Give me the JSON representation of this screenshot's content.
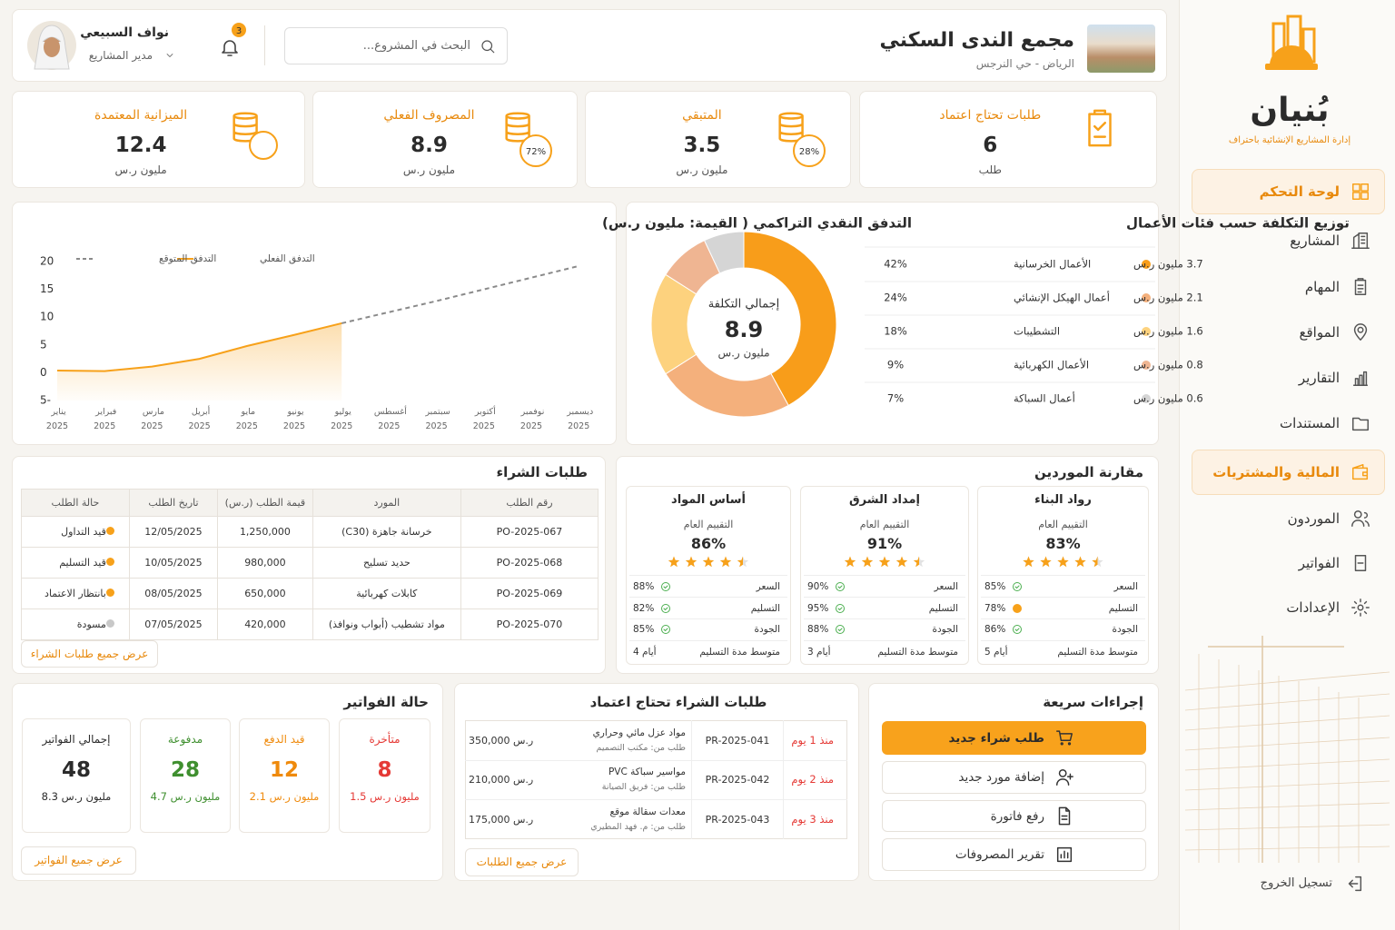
{
  "sidebar": {
    "brand": "بُنيان",
    "tagline": "إدارة المشاريع الإنشائية باحتراف",
    "nav": [
      "لوحة التحكم",
      "المشاريع",
      "المهام",
      "المواقع",
      "التقارير",
      "المستندات",
      "المالية والمشتريات",
      "الموردون",
      "الفواتير",
      "الإعدادات"
    ],
    "active": [
      0,
      6
    ],
    "logout": "تسجيل الخروج"
  },
  "header": {
    "project_name": "مجمع الندى السكني",
    "location": "الرياض - حي النرجس",
    "search_placeholder": "البحث في المشروع...",
    "notifications": 3,
    "user_name": "نواف السبيعي",
    "user_role": "مدير المشاريع"
  },
  "kpis": [
    {
      "title": "طلبات تحتاج اعتماد",
      "value": 6,
      "unit": "طلب"
    },
    {
      "title": "المتبقي",
      "value": 3.5,
      "unit": "مليون ر.س",
      "percent": "28%"
    },
    {
      "title": "المصروف الفعلي",
      "value": 8.9,
      "unit": "مليون ر.س",
      "percent": "72%"
    },
    {
      "title": "الميزانية المعتمدة",
      "value": 12.4,
      "unit": "مليون ر.س"
    }
  ],
  "chart_data": [
    {
      "type": "line",
      "title": "التدفق النقدي التراكمي ( القيمة: مليون ر.س)",
      "categories": [
        "يناير 2025",
        "فبراير 2025",
        "مارس 2025",
        "أبريل 2025",
        "مايو 2025",
        "يونيو 2025",
        "يوليو 2025",
        "أغسطس 2025",
        "سبتمبر 2025",
        "أكتوبر 2025",
        "نوفمبر 2025",
        "ديسمبر 2025"
      ],
      "series": [
        {
          "name": "التدفق الفعلي",
          "color": "#f7a11a",
          "area": true,
          "values": [
            0.4,
            0.3,
            1.1,
            2.5,
            4.8,
            6.8,
            8.9,
            null,
            null,
            null,
            null,
            null
          ]
        },
        {
          "name": "التدفق المتوقع",
          "color": "#8a8a8a",
          "dashed": true,
          "values": [
            null,
            null,
            null,
            null,
            null,
            null,
            8.9,
            10.9,
            12.9,
            15,
            17.1,
            19.2
          ]
        }
      ],
      "ylim": [
        -5,
        20
      ],
      "yticks": [
        -5,
        0,
        5,
        10,
        15,
        20
      ],
      "grid": false
    },
    {
      "type": "donut",
      "title": "توزيع التكلفة حسب فئات الأعمال",
      "center_title": "إجمالي التكلفة",
      "center_value": 8.9,
      "center_unit": "مليون ر.س",
      "categories": [
        "الأعمال الخرسانية",
        "أعمال الهيكل الإنشائي",
        "التشطيبات",
        "الأعمال الكهربائية",
        "أعمال السباكة"
      ],
      "values": [
        42,
        24,
        18,
        9,
        7
      ],
      "value_labels": [
        "42%",
        "24%",
        "18%",
        "9%",
        "7%"
      ],
      "amount_labels": [
        "3.7 مليون ر.س",
        "2.1 مليون ر.س",
        "1.6 مليون ر.س",
        "0.8 مليون ر.س",
        "0.6 مليون ر.س"
      ],
      "colors": [
        "#f89d1a",
        "#f4b07c",
        "#fdd27e",
        "#efb592",
        "#d5d5d5"
      ]
    }
  ],
  "purchase_orders": {
    "title": "طلبات الشراء",
    "columns": [
      "رقم الطلب",
      "المورد",
      "قيمة الطلب (ر.س)",
      "تاريخ الطلب",
      "حالة الطلب"
    ],
    "rows": [
      [
        "PO-2025-067",
        "خرسانة جاهزة (C30)",
        "1,250,000",
        "12/05/2025",
        "قيد التداول"
      ],
      [
        "PO-2025-068",
        "حديد تسليح",
        "980,000",
        "10/05/2025",
        "قيد التسليم"
      ],
      [
        "PO-2025-069",
        "كابلات كهربائية",
        "650,000",
        "08/05/2025",
        "بانتظار الاعتماد"
      ],
      [
        "PO-2025-070",
        "مواد تشطيب (أبواب ونوافذ)",
        "420,000",
        "07/05/2025",
        "مسودة"
      ]
    ],
    "status_colors": [
      "#f7a11a",
      "#f7a11a",
      "#f7a11a",
      "#c8c8c8"
    ],
    "button": "عرض جميع طلبات الشراء"
  },
  "supplier_comparison": {
    "title": "مقارنة الموردين",
    "overall_label": "التقييم العام",
    "metric_labels": [
      "السعر",
      "التسليم",
      "الجودة"
    ],
    "delivery_label": "متوسط مدة التسليم",
    "suppliers": [
      {
        "name": "رواد البناء",
        "score": "83%",
        "rating": 4.5,
        "metrics": [
          "85%",
          "78%",
          "86%"
        ],
        "metric_status": [
          "ok",
          "warn",
          "ok"
        ],
        "delivery": "5 أيام"
      },
      {
        "name": "إمداد الشرق",
        "score": "91%",
        "rating": 4.5,
        "metrics": [
          "90%",
          "95%",
          "88%"
        ],
        "metric_status": [
          "ok",
          "ok",
          "ok"
        ],
        "delivery": "3 أيام"
      },
      {
        "name": "أساس المواد",
        "score": "86%",
        "rating": 4.5,
        "metrics": [
          "88%",
          "82%",
          "85%"
        ],
        "metric_status": [
          "ok",
          "ok",
          "ok"
        ],
        "delivery": "4 أيام"
      }
    ]
  },
  "invoices": {
    "title": "حالة الفواتير",
    "cards": [
      {
        "label": "متأخرة",
        "count": 8,
        "amount": "1.5 مليون ر.س",
        "color": "#e53935"
      },
      {
        "label": "قيد الدفع",
        "count": 12,
        "amount": "2.1 مليون ر.س",
        "color": "#ef8a0c"
      },
      {
        "label": "مدفوعة",
        "count": 28,
        "amount": "4.7 مليون ر.س",
        "color": "#3f8f2f"
      },
      {
        "label": "إجمالي الفواتير",
        "count": 48,
        "amount": "8.3 مليون ر.س",
        "color": "#2b2b2b"
      }
    ],
    "button": "عرض جميع الفواتير"
  },
  "approvals": {
    "title": "طلبات الشراء تحتاج اعتماد",
    "rows": [
      {
        "age": "منذ 1 يوم",
        "id": "PR-2025-041",
        "item": "مواد عزل مائي وحراري",
        "requester": "طلب من: مكتب التصميم",
        "amount": "350,000 ر.س"
      },
      {
        "age": "منذ 2 يوم",
        "id": "PR-2025-042",
        "item": "مواسير سباكة PVC",
        "requester": "طلب من: فريق الصيانة",
        "amount": "210,000 ر.س"
      },
      {
        "age": "منذ 3 يوم",
        "id": "PR-2025-043",
        "item": "معدات سقالة موقع",
        "requester": "طلب من: م. فهد المطيري",
        "amount": "175,000 ر.س"
      }
    ],
    "button": "عرض جميع الطلبات"
  },
  "quick_actions": {
    "title": "إجراءات سريعة",
    "actions": [
      "طلب شراء جديد",
      "إضافة مورد جديد",
      "رفع فاتورة",
      "تقرير المصروفات"
    ]
  }
}
